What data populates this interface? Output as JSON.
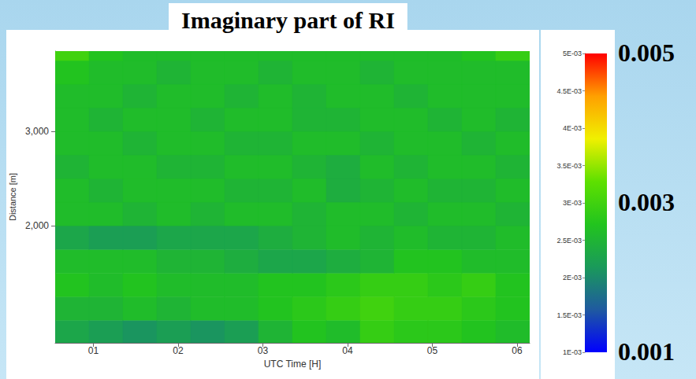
{
  "chart_data": {
    "type": "heatmap",
    "title": "Imaginary part of RI",
    "x_label": "UTC Time [H]",
    "y_label": "Distance [m]",
    "x": [
      0.75,
      1.15,
      1.55,
      1.95,
      2.35,
      2.75,
      3.15,
      3.55,
      3.95,
      4.35,
      4.75,
      5.15,
      5.55,
      5.95
    ],
    "y": [
      875,
      1125,
      1375,
      1625,
      1875,
      2125,
      2375,
      2625,
      2875,
      3125,
      3375,
      3625,
      3875
    ],
    "cells": [
      [
        0.0023,
        0.0022,
        0.0021,
        0.0022,
        0.0021,
        0.0022,
        0.0025,
        0.0027,
        0.0026,
        0.0029,
        0.0028,
        0.0028,
        0.0027,
        0.0026
      ],
      [
        0.0025,
        0.0025,
        0.0026,
        0.0025,
        0.0026,
        0.0026,
        0.0027,
        0.0028,
        0.0029,
        0.003,
        0.0029,
        0.0029,
        0.0028,
        0.0027
      ],
      [
        0.0027,
        0.0026,
        0.0027,
        0.0026,
        0.0026,
        0.0026,
        0.0027,
        0.0027,
        0.0028,
        0.0029,
        0.0029,
        0.0028,
        0.0029,
        0.0027
      ],
      [
        0.0026,
        0.0026,
        0.0026,
        0.0025,
        0.0025,
        0.0024,
        0.0023,
        0.0023,
        0.0024,
        0.0025,
        0.0027,
        0.0027,
        0.0026,
        0.0026
      ],
      [
        0.0023,
        0.0022,
        0.0022,
        0.0023,
        0.0023,
        0.0023,
        0.0024,
        0.0025,
        0.0026,
        0.0025,
        0.0026,
        0.0025,
        0.0025,
        0.0026
      ],
      [
        0.0026,
        0.0026,
        0.0025,
        0.0026,
        0.0025,
        0.0026,
        0.0026,
        0.0025,
        0.0026,
        0.0026,
        0.0025,
        0.0026,
        0.0026,
        0.0025
      ],
      [
        0.0026,
        0.0025,
        0.0026,
        0.0026,
        0.0026,
        0.0025,
        0.0025,
        0.0026,
        0.0024,
        0.0025,
        0.0026,
        0.0025,
        0.0025,
        0.0026
      ],
      [
        0.0025,
        0.0026,
        0.0026,
        0.0025,
        0.0025,
        0.0026,
        0.0026,
        0.0025,
        0.0024,
        0.0026,
        0.0025,
        0.0026,
        0.0026,
        0.0025
      ],
      [
        0.0026,
        0.0026,
        0.0025,
        0.0026,
        0.0026,
        0.0025,
        0.0025,
        0.0026,
        0.0026,
        0.0025,
        0.0026,
        0.0026,
        0.0025,
        0.0026
      ],
      [
        0.0026,
        0.0025,
        0.0026,
        0.0026,
        0.0025,
        0.0026,
        0.0026,
        0.0025,
        0.0025,
        0.0026,
        0.0026,
        0.0025,
        0.0026,
        0.0025
      ],
      [
        0.0026,
        0.0026,
        0.0025,
        0.0026,
        0.0026,
        0.0025,
        0.0026,
        0.0025,
        0.0026,
        0.0026,
        0.0025,
        0.0026,
        0.0026,
        0.0026
      ],
      [
        0.0027,
        0.0026,
        0.0026,
        0.0025,
        0.0026,
        0.0026,
        0.0025,
        0.0026,
        0.0026,
        0.0025,
        0.0026,
        0.0026,
        0.0026,
        0.0026
      ],
      [
        0.003,
        0.0027,
        0.0026,
        0.0026,
        0.0026,
        0.0026,
        0.0026,
        0.0026,
        0.0026,
        0.0026,
        0.0026,
        0.0026,
        0.0027,
        0.0029
      ]
    ],
    "xlim": [
      0.55,
      6.15
    ],
    "ylim": [
      760,
      3850
    ],
    "xticks": [
      {
        "value": 1,
        "label": "01"
      },
      {
        "value": 2,
        "label": "02"
      },
      {
        "value": 3,
        "label": "03"
      },
      {
        "value": 4,
        "label": "04"
      },
      {
        "value": 5,
        "label": "05"
      },
      {
        "value": 6,
        "label": "06"
      }
    ],
    "yticks": [
      {
        "value": 2000,
        "label": "2,000"
      },
      {
        "value": 3000,
        "label": "3,000"
      }
    ],
    "colorbar": {
      "range": [
        0.001,
        0.005
      ],
      "ticks": [
        {
          "value": 0.001,
          "label": "1E-03"
        },
        {
          "value": 0.0015,
          "label": "1.5E-03"
        },
        {
          "value": 0.002,
          "label": "2E-03"
        },
        {
          "value": 0.0025,
          "label": "2.5E-03"
        },
        {
          "value": 0.003,
          "label": "3E-03"
        },
        {
          "value": 0.0035,
          "label": "3.5E-03"
        },
        {
          "value": 0.004,
          "label": "4E-03"
        },
        {
          "value": 0.0045,
          "label": "4.5E-03"
        },
        {
          "value": 0.005,
          "label": "5E-03"
        }
      ],
      "colors": [
        "#0000ff",
        "#1f5aa0",
        "#1a9a5a",
        "#22c41e",
        "#5ee000",
        "#f0f000",
        "#ffa000",
        "#ff0000"
      ]
    },
    "annotations": [
      "0.005",
      "0.003",
      "0.001"
    ]
  }
}
